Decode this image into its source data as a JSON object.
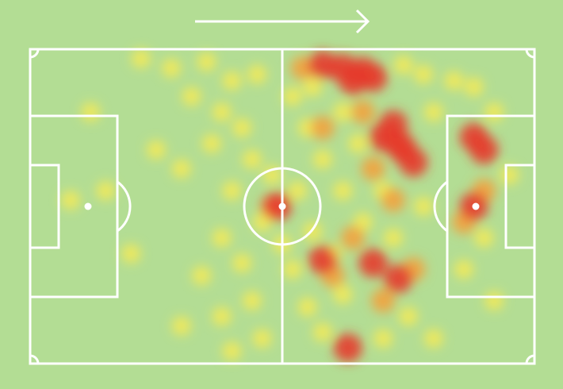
{
  "chart_data": {
    "type": "heatmap",
    "xlim": [
      0,
      100
    ],
    "ylim": [
      0,
      100
    ],
    "vlim": [
      1,
      3
    ],
    "colors": [
      "#f4ea58",
      "#f2a23e",
      "#e63a2c"
    ],
    "x": [
      22,
      28,
      35,
      40,
      45,
      32,
      38,
      42,
      36,
      44,
      30,
      40,
      46,
      38,
      42,
      34,
      44,
      38,
      46,
      40,
      30,
      12,
      15,
      8,
      20,
      25,
      52,
      55,
      58,
      53,
      56,
      52,
      55,
      58,
      62,
      65,
      62,
      66,
      62,
      70,
      72,
      75,
      78,
      80,
      84,
      88,
      92,
      95,
      90,
      86,
      92,
      80,
      70,
      48,
      50,
      74,
      78,
      56,
      60,
      58,
      66,
      68,
      72,
      64,
      60,
      70,
      76,
      90,
      86,
      54,
      48,
      58,
      62,
      66,
      68,
      64,
      72,
      70,
      74,
      76,
      73,
      88,
      90,
      49,
      63,
      58,
      68,
      73,
      88
    ],
    "y": [
      3,
      6,
      4,
      10,
      8,
      15,
      20,
      25,
      30,
      35,
      38,
      45,
      55,
      60,
      68,
      72,
      80,
      85,
      92,
      96,
      88,
      20,
      45,
      48,
      65,
      32,
      15,
      25,
      35,
      45,
      58,
      70,
      82,
      90,
      20,
      30,
      45,
      55,
      78,
      45,
      60,
      85,
      50,
      20,
      10,
      12,
      20,
      40,
      60,
      70,
      80,
      92,
      92,
      40,
      62,
      5,
      8,
      12,
      65,
      25,
      20,
      38,
      48,
      60,
      72,
      80,
      70,
      45,
      55,
      6,
      50,
      5,
      6,
      7,
      9,
      10,
      24,
      28,
      32,
      36,
      30,
      28,
      32,
      50,
      95,
      67,
      68,
      73,
      50
    ],
    "values": [
      1,
      1,
      1,
      1,
      1,
      1,
      1,
      1,
      1,
      1,
      1,
      1,
      1,
      1,
      1,
      1,
      1,
      1,
      1,
      1,
      1,
      1,
      1,
      1,
      1,
      1,
      1,
      1,
      1,
      1,
      1,
      1,
      1,
      1,
      1,
      1,
      1,
      1,
      1,
      1,
      1,
      1,
      1,
      1,
      1,
      1,
      1,
      1,
      1,
      1,
      1,
      1,
      1,
      1,
      1,
      1,
      1,
      1,
      1,
      2,
      2,
      2,
      2,
      2,
      2,
      2,
      2,
      2,
      2,
      2,
      2,
      3,
      3,
      3,
      3,
      3,
      3,
      3,
      3,
      3,
      3,
      3,
      3,
      3,
      3,
      3,
      3,
      3,
      3
    ]
  }
}
